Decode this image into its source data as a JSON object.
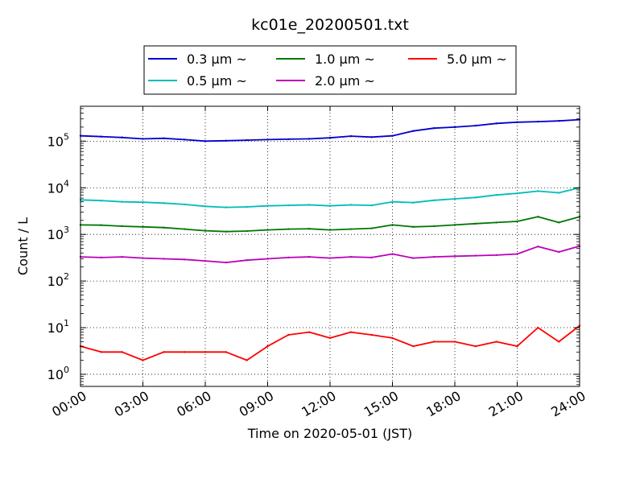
{
  "chart_data": {
    "type": "line",
    "title": "kc01e_20200501.txt",
    "xlabel": "Time on 2020-05-01 (JST)",
    "ylabel": "Count / L",
    "yscale": "log",
    "ylim": [
      0.55,
      560000
    ],
    "xlim": [
      "00:00",
      "24:00"
    ],
    "xticks": [
      "00:00",
      "03:00",
      "06:00",
      "09:00",
      "12:00",
      "15:00",
      "18:00",
      "21:00",
      "24:00"
    ],
    "yticks": [
      {
        "value": 1,
        "base": "10",
        "exp": "0"
      },
      {
        "value": 10,
        "base": "10",
        "exp": "1"
      },
      {
        "value": 100,
        "base": "10",
        "exp": "2"
      },
      {
        "value": 1000,
        "base": "10",
        "exp": "3"
      },
      {
        "value": 10000,
        "base": "10",
        "exp": "4"
      },
      {
        "value": 100000,
        "base": "10",
        "exp": "5"
      }
    ],
    "grid": true,
    "legend_position": "top-center",
    "x": [
      "00:00",
      "01:00",
      "02:00",
      "03:00",
      "04:00",
      "05:00",
      "06:00",
      "07:00",
      "08:00",
      "09:00",
      "10:00",
      "11:00",
      "12:00",
      "13:00",
      "14:00",
      "15:00",
      "16:00",
      "17:00",
      "18:00",
      "19:00",
      "20:00",
      "21:00",
      "22:00",
      "23:00",
      "24:00"
    ],
    "series": [
      {
        "name": "0.3 μm  ~",
        "color": "#0000cc",
        "values": [
          130000,
          125000,
          120000,
          112000,
          115000,
          108000,
          100000,
          102000,
          105000,
          108000,
          110000,
          112000,
          118000,
          128000,
          122000,
          130000,
          165000,
          190000,
          200000,
          215000,
          240000,
          255000,
          262000,
          272000,
          290000
        ]
      },
      {
        "name": "0.5 μm  ~",
        "color": "#00bbbb",
        "values": [
          5500,
          5300,
          5000,
          4900,
          4700,
          4400,
          4000,
          3800,
          3900,
          4100,
          4200,
          4300,
          4100,
          4300,
          4200,
          5000,
          4800,
          5400,
          5800,
          6200,
          7000,
          7600,
          8500,
          7800,
          10000
        ]
      },
      {
        "name": "1.0 μm  ~",
        "color": "#007700",
        "values": [
          1600,
          1580,
          1500,
          1450,
          1400,
          1300,
          1200,
          1150,
          1180,
          1250,
          1300,
          1320,
          1250,
          1300,
          1350,
          1600,
          1450,
          1500,
          1600,
          1700,
          1800,
          1900,
          2400,
          1800,
          2400
        ]
      },
      {
        "name": "2.0 μm  ~",
        "color": "#bb00bb",
        "values": [
          330,
          320,
          330,
          310,
          300,
          290,
          270,
          250,
          280,
          300,
          320,
          330,
          310,
          330,
          320,
          380,
          310,
          330,
          340,
          350,
          360,
          380,
          550,
          420,
          560
        ]
      },
      {
        "name": "5.0 μm  ~",
        "color": "#ff0000",
        "values": [
          4,
          3,
          3,
          2,
          3,
          3,
          3,
          3,
          2,
          4,
          7,
          8,
          6,
          8,
          7,
          6,
          4,
          5,
          5,
          4,
          5,
          4,
          10,
          5,
          11
        ]
      }
    ]
  }
}
